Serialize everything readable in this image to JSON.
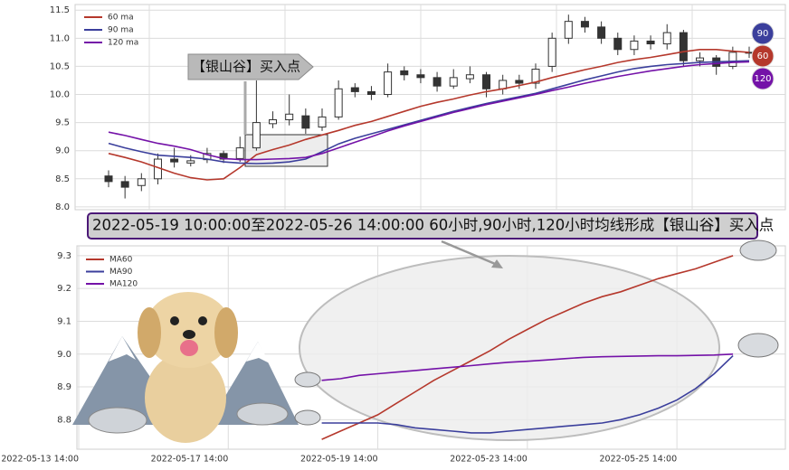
{
  "chart_data": [
    {
      "type": "candlestick",
      "annotation": "【银山谷】买入点",
      "badges": [
        "90",
        "60",
        "120"
      ],
      "ylim": [
        7.95,
        11.6
      ],
      "yticks": [
        {
          "value": 8,
          "label": "8.0"
        },
        8.5,
        {
          "value": 9,
          "label": "9.0"
        },
        9.5,
        {
          "value": 10,
          "label": "10.0"
        },
        10.5,
        {
          "value": 11,
          "label": "11.0"
        },
        11.5
      ],
      "grid": true,
      "legend": "upper left",
      "candles": {
        "open": [
          8.55,
          8.45,
          8.38,
          8.5,
          8.85,
          8.78,
          8.84,
          8.95,
          8.86,
          9.05,
          9.48,
          9.55,
          9.62,
          9.42,
          9.6,
          10.12,
          10.05,
          10.0,
          10.42,
          10.35,
          10.3,
          10.15,
          10.28,
          10.35,
          10.1,
          10.25,
          10.2,
          10.5,
          11.0,
          11.3,
          11.2,
          11.0,
          10.8,
          10.95,
          10.9,
          11.1,
          10.6,
          10.65,
          10.5,
          10.75
        ],
        "high": [
          8.65,
          8.55,
          8.6,
          8.95,
          9.05,
          8.92,
          9.05,
          9.0,
          9.25,
          10.25,
          9.7,
          10.0,
          9.75,
          9.75,
          10.25,
          10.2,
          10.15,
          10.55,
          10.5,
          10.45,
          10.4,
          10.45,
          10.5,
          10.4,
          10.35,
          10.35,
          10.55,
          11.1,
          11.42,
          11.38,
          11.3,
          11.1,
          11.05,
          11.05,
          11.25,
          11.15,
          10.75,
          10.7,
          10.85,
          10.85
        ],
        "low": [
          8.35,
          8.15,
          8.28,
          8.4,
          8.7,
          8.72,
          8.78,
          8.78,
          8.8,
          9.0,
          9.4,
          9.45,
          9.3,
          9.35,
          9.55,
          9.95,
          9.9,
          9.95,
          10.25,
          10.2,
          10.05,
          10.1,
          10.2,
          9.95,
          10.0,
          10.1,
          10.1,
          10.4,
          10.9,
          11.1,
          10.9,
          10.7,
          10.7,
          10.8,
          10.8,
          10.5,
          10.5,
          10.35,
          10.45,
          10.65
        ],
        "close": [
          8.45,
          8.35,
          8.5,
          8.85,
          8.8,
          8.82,
          8.95,
          8.85,
          9.05,
          9.5,
          9.55,
          9.65,
          9.4,
          9.6,
          10.1,
          10.05,
          10.0,
          10.4,
          10.35,
          10.3,
          10.15,
          10.3,
          10.35,
          10.1,
          10.25,
          10.2,
          10.45,
          11.0,
          11.3,
          11.2,
          11.0,
          10.8,
          10.95,
          10.9,
          11.1,
          10.6,
          10.65,
          10.5,
          10.75,
          10.75
        ]
      },
      "series": [
        {
          "name": "60 ma",
          "color": "#b5382c",
          "values": [
            8.95,
            8.88,
            8.8,
            8.7,
            8.6,
            8.52,
            8.48,
            8.5,
            8.7,
            8.93,
            9.02,
            9.1,
            9.2,
            9.28,
            9.36,
            9.45,
            9.52,
            9.61,
            9.7,
            9.79,
            9.86,
            9.92,
            9.99,
            10.05,
            10.1,
            10.16,
            10.22,
            10.3,
            10.37,
            10.44,
            10.5,
            10.57,
            10.62,
            10.66,
            10.71,
            10.76,
            10.8,
            10.8,
            10.77,
            10.75
          ]
        },
        {
          "name": "90 ma",
          "color": "#3b3f9c",
          "values": [
            9.13,
            9.05,
            8.98,
            8.92,
            8.9,
            8.88,
            8.85,
            8.8,
            8.78,
            8.77,
            8.78,
            8.8,
            8.85,
            8.98,
            9.12,
            9.22,
            9.3,
            9.38,
            9.46,
            9.54,
            9.62,
            9.7,
            9.77,
            9.84,
            9.9,
            9.96,
            10.02,
            10.1,
            10.18,
            10.26,
            10.33,
            10.4,
            10.46,
            10.5,
            10.53,
            10.55,
            10.57,
            10.58,
            10.59,
            10.6
          ]
        },
        {
          "name": "120 ma",
          "color": "#7412a8",
          "values": [
            9.33,
            9.27,
            9.2,
            9.13,
            9.08,
            9.02,
            8.93,
            8.86,
            8.84,
            8.84,
            8.85,
            8.86,
            8.88,
            8.95,
            9.05,
            9.15,
            9.25,
            9.35,
            9.44,
            9.52,
            9.6,
            9.68,
            9.75,
            9.82,
            9.88,
            9.94,
            10.0,
            10.07,
            10.13,
            10.2,
            10.26,
            10.32,
            10.37,
            10.42,
            10.46,
            10.5,
            10.53,
            10.55,
            10.57,
            10.58
          ]
        }
      ]
    },
    {
      "type": "line",
      "annotation": "2022-05-19 10:00:00至2022-05-26 14:00:00 60小时,90小时,120小时均线形成【银山谷】买入点",
      "ylim": [
        8.71,
        9.33
      ],
      "yticks": [
        8.8,
        8.9,
        {
          "value": 9,
          "label": "9.0"
        },
        9.1,
        9.2,
        9.3
      ],
      "grid": true,
      "legend": "upper left",
      "categories": [
        "2022-05-13 14:00",
        null,
        null,
        null,
        null,
        null,
        null,
        null,
        "2022-05-17 14:00",
        null,
        null,
        null,
        null,
        null,
        null,
        null,
        "2022-05-19 14:00",
        null,
        null,
        null,
        null,
        null,
        null,
        null,
        "2022-05-23 14:00",
        null,
        null,
        null,
        null,
        null,
        null,
        null,
        "2022-05-25 14:00",
        null,
        null,
        null,
        null,
        null
      ],
      "series": [
        {
          "name": "MA60",
          "color": "#b5382c",
          "values": [
            null,
            null,
            null,
            null,
            null,
            null,
            null,
            null,
            null,
            null,
            null,
            null,
            null,
            8.74,
            8.765,
            8.79,
            8.815,
            8.85,
            8.885,
            8.92,
            8.95,
            8.98,
            9.01,
            9.045,
            9.075,
            9.105,
            9.13,
            9.155,
            9.175,
            9.19,
            9.21,
            9.23,
            9.245,
            9.26,
            9.28,
            9.3,
            null,
            null
          ]
        },
        {
          "name": "MA90",
          "color": "#3b3f9c",
          "values": [
            null,
            null,
            null,
            null,
            null,
            null,
            null,
            null,
            null,
            null,
            null,
            null,
            null,
            8.79,
            8.79,
            8.79,
            8.79,
            8.785,
            8.775,
            8.77,
            8.765,
            8.76,
            8.76,
            8.765,
            8.77,
            8.775,
            8.78,
            8.785,
            8.79,
            8.8,
            8.815,
            8.835,
            8.86,
            8.895,
            8.94,
            8.995,
            null,
            null
          ]
        },
        {
          "name": "MA120",
          "color": "#7412a8",
          "values": [
            null,
            null,
            null,
            null,
            null,
            null,
            null,
            null,
            null,
            null,
            null,
            null,
            null,
            8.92,
            8.925,
            8.935,
            8.94,
            8.945,
            8.95,
            8.955,
            8.96,
            8.965,
            8.97,
            8.975,
            8.978,
            8.982,
            8.986,
            8.99,
            8.992,
            8.993,
            8.994,
            8.995,
            8.995,
            8.996,
            8.997,
            9.0,
            null,
            null
          ]
        }
      ]
    }
  ]
}
